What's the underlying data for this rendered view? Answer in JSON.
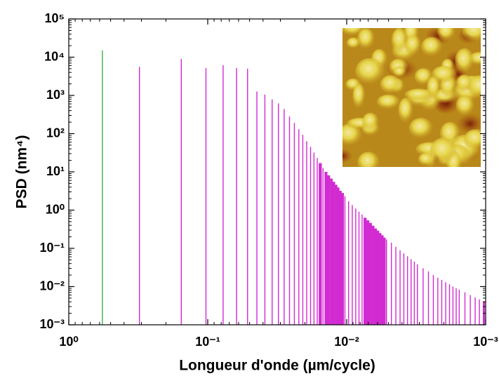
{
  "chart_data": {
    "type": "stem",
    "xlabel": "Longueur d'onde (µm/cycle)",
    "ylabel": "PSD (nm⁴)",
    "xscale": "log",
    "yscale": "log",
    "xlim": [
      1,
      0.001
    ],
    "ylim": [
      0.001,
      100000
    ],
    "xticks": [
      {
        "value": 1,
        "label": "10⁰"
      },
      {
        "value": 0.1,
        "label": "10⁻¹"
      },
      {
        "value": 0.01,
        "label": "10⁻²"
      },
      {
        "value": 0.001,
        "label": "10⁻³"
      }
    ],
    "yticks": [
      {
        "value": 0.001,
        "label": "10⁻³"
      },
      {
        "value": 0.01,
        "label": "10⁻²"
      },
      {
        "value": 0.1,
        "label": "10⁻¹"
      },
      {
        "value": 1,
        "label": "10⁰"
      },
      {
        "value": 10,
        "label": "10¹"
      },
      {
        "value": 100,
        "label": "10²"
      },
      {
        "value": 1000,
        "label": "10³"
      },
      {
        "value": 10000,
        "label": "10⁴"
      },
      {
        "value": 100000,
        "label": "10⁵"
      }
    ],
    "series": [
      {
        "color": "#3cb44b",
        "x": [
          0.573
        ],
        "values": [
          15000
        ]
      },
      {
        "color": "#d22bd2",
        "x": [
          0.31,
          0.155,
          0.103,
          0.0775,
          0.062,
          0.0517,
          0.0443,
          0.0388,
          0.0344,
          0.031,
          0.0282,
          0.0258,
          0.0238,
          0.0221,
          0.0207,
          0.0194,
          0.0182,
          0.0172,
          0.0163,
          0.0155,
          0.0148,
          0.0141,
          0.0135,
          0.0129,
          0.0124,
          0.0119,
          0.0115,
          0.0111,
          0.0107,
          0.0103,
          0.00969,
          0.00912,
          0.00861,
          0.00816,
          0.00775,
          0.00738,
          0.00705,
          0.00674,
          0.00646,
          0.0062,
          0.00596,
          0.00574,
          0.00554,
          0.00534,
          0.00517,
          0.00477,
          0.00443,
          0.00413,
          0.00388,
          0.00365,
          0.00344,
          0.00326,
          0.0031,
          0.00282,
          0.00258,
          0.00238,
          0.00221,
          0.00207,
          0.00194,
          0.00182,
          0.00172,
          0.00163,
          0.00155,
          0.00141,
          0.00129,
          0.00119,
          0.00111,
          0.00103
        ],
        "values": [
          5600,
          9000,
          5200,
          6200,
          5200,
          5000,
          1260,
          1050,
          790,
          620,
          440,
          280,
          190,
          130,
          93,
          63,
          45,
          32,
          23,
          17,
          12.6,
          10,
          8.1,
          6.7,
          5.5,
          4.6,
          3.9,
          3.2,
          2.8,
          2.3,
          1.7,
          1.35,
          1.1,
          0.91,
          0.76,
          0.63,
          0.54,
          0.46,
          0.39,
          0.33,
          0.29,
          0.25,
          0.22,
          0.19,
          0.17,
          0.14,
          0.11,
          0.089,
          0.074,
          0.062,
          0.052,
          0.045,
          0.038,
          0.03,
          0.025,
          0.02,
          0.017,
          0.015,
          0.013,
          0.0115,
          0.01,
          0.0091,
          0.0083,
          0.0071,
          0.006,
          0.0052,
          0.0046,
          0.0041
        ]
      }
    ]
  }
}
